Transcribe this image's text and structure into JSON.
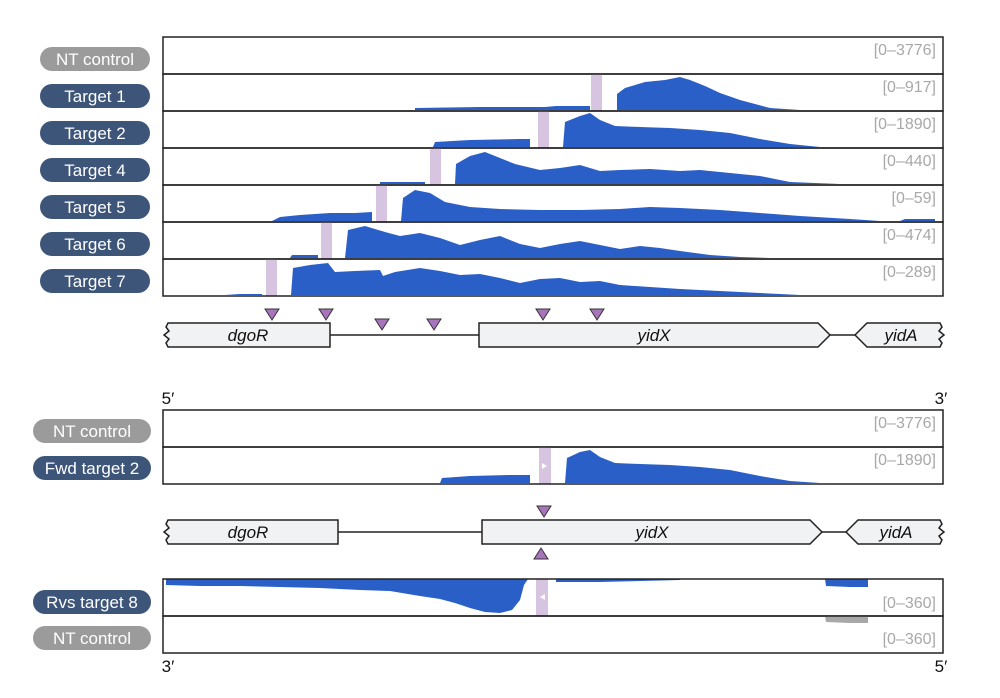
{
  "colors": {
    "navy_label": "#3d5578",
    "grey_label": "#9b9b9b",
    "signal": "#2a5fc7",
    "reverse_grey": "#a8a8a8",
    "target_mark": "#d6c4e0",
    "triangle": "#a874bb",
    "range_text": "#a8a8a8"
  },
  "top_panel": {
    "tracks": [
      {
        "label": "NT control",
        "style": "grey",
        "range": "[0–3776]",
        "target": null
      },
      {
        "label": "Target 1",
        "style": "navy",
        "range": "[0–917]",
        "target": 4
      },
      {
        "label": "Target 2",
        "style": "navy",
        "range": "[0–1890]",
        "target": 3
      },
      {
        "label": "Target 4",
        "style": "navy",
        "range": "[0–440]",
        "target": 2
      },
      {
        "label": "Target 5",
        "style": "navy",
        "range": "[0–59]",
        "target": 1
      },
      {
        "label": "Target 6",
        "style": "navy",
        "range": "[0–474]",
        "target": 0
      },
      {
        "label": "Target 7",
        "style": "navy",
        "range": "[0–289]",
        "target": -1
      }
    ],
    "genes": [
      {
        "name": "dgoR",
        "shape": "left-break"
      },
      {
        "name": "yidX",
        "shape": "arrow-right"
      },
      {
        "name": "yidA",
        "shape": "arrow-left-break"
      }
    ]
  },
  "bottom_panel": {
    "five_prime": "5′",
    "three_prime": "3′",
    "fwd_tracks": [
      {
        "label": "NT control",
        "style": "grey",
        "range": "[0–3776]"
      },
      {
        "label": "Fwd target 2",
        "style": "navy",
        "range": "[0–1890]"
      }
    ],
    "rvs_tracks": [
      {
        "label": "Rvs target 8",
        "style": "navy",
        "range": "[0–360]"
      },
      {
        "label": "NT control",
        "style": "grey",
        "range": "[0–360]"
      }
    ],
    "genes": [
      {
        "name": "dgoR",
        "shape": "left-break"
      },
      {
        "name": "yidX",
        "shape": "arrow-right"
      },
      {
        "name": "yidA",
        "shape": "arrow-left-break"
      }
    ],
    "bottom_left_end": "3′",
    "bottom_right_end": "5′"
  }
}
